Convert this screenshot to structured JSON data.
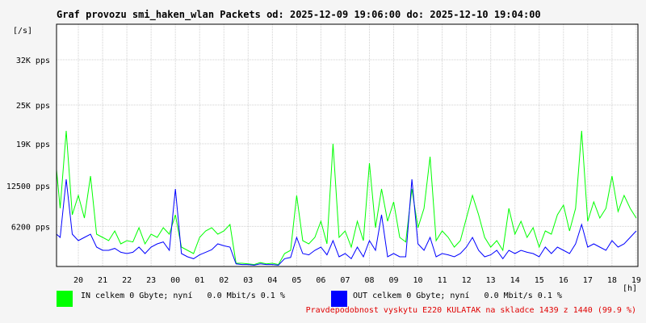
{
  "title": "Graf provozu smi_haken_wlan Packets od: 2025-12-09 19:06:00 do: 2025-12-10 19:04:00",
  "chart_data": {
    "type": "line",
    "ylabel": "[/s]",
    "xlabel": "[h]",
    "y_ticks": [
      {
        "value": 6200,
        "label": "6200 pps"
      },
      {
        "value": 12500,
        "label": "12500 pps"
      },
      {
        "value": 19000,
        "label": "19K pps"
      },
      {
        "value": 25000,
        "label": "25K pps"
      },
      {
        "value": 32000,
        "label": "32K pps"
      }
    ],
    "ylim": [
      0,
      37500
    ],
    "x_ticks": [
      "20",
      "21",
      "22",
      "23",
      "00",
      "01",
      "02",
      "03",
      "04",
      "05",
      "06",
      "07",
      "08",
      "09",
      "10",
      "11",
      "12",
      "13",
      "14",
      "15",
      "16",
      "17",
      "18",
      "19"
    ],
    "xlim": [
      19.1,
      43.07
    ],
    "grid": true,
    "series": [
      {
        "name": "IN",
        "color": "#00ff00",
        "x": [
          19.1,
          19.25,
          19.5,
          19.75,
          20.0,
          20.25,
          20.5,
          20.75,
          21.0,
          21.25,
          21.5,
          21.75,
          22.0,
          22.25,
          22.5,
          22.75,
          23.0,
          23.25,
          23.5,
          23.75,
          24.0,
          24.25,
          24.5,
          24.75,
          25.0,
          25.25,
          25.5,
          25.75,
          26.0,
          26.25,
          26.5,
          26.75,
          27.0,
          27.25,
          27.5,
          27.75,
          28.0,
          28.25,
          28.5,
          28.75,
          29.0,
          29.25,
          29.5,
          29.75,
          30.0,
          30.25,
          30.5,
          30.75,
          31.0,
          31.25,
          31.5,
          31.75,
          32.0,
          32.25,
          32.5,
          32.75,
          33.0,
          33.25,
          33.5,
          33.75,
          34.0,
          34.25,
          34.5,
          34.75,
          35.0,
          35.25,
          35.5,
          35.75,
          36.0,
          36.25,
          36.5,
          36.75,
          37.0,
          37.25,
          37.5,
          37.75,
          38.0,
          38.25,
          38.5,
          38.75,
          39.0,
          39.25,
          39.5,
          39.75,
          40.0,
          40.25,
          40.5,
          40.75,
          41.0,
          41.25,
          41.5,
          41.75,
          42.0,
          42.25,
          42.5,
          42.75,
          43.0
        ],
        "values": [
          15000,
          9000,
          21000,
          8000,
          11000,
          7500,
          14000,
          5000,
          4500,
          4000,
          5500,
          3500,
          4000,
          3800,
          6000,
          3500,
          5000,
          4500,
          6000,
          5000,
          8000,
          3000,
          2500,
          2000,
          4500,
          5500,
          6000,
          5000,
          5500,
          6500,
          500,
          500,
          400,
          300,
          600,
          400,
          500,
          300,
          2000,
          2500,
          11000,
          4000,
          3500,
          4500,
          7000,
          3500,
          19000,
          4500,
          5500,
          3000,
          7000,
          4000,
          16000,
          6000,
          12000,
          7000,
          10000,
          4500,
          3800,
          12000,
          6000,
          9000,
          17000,
          4000,
          5500,
          4500,
          3000,
          4000,
          7500,
          11000,
          8000,
          4500,
          3000,
          4000,
          2500,
          9000,
          5000,
          7000,
          4500,
          6000,
          3000,
          5500,
          5000,
          8000,
          9500,
          5500,
          9000,
          21000,
          7000,
          10000,
          7500,
          9000,
          14000,
          8500,
          11000,
          9000,
          7500
        ]
      },
      {
        "name": "OUT",
        "color": "#0000ff",
        "x": [
          19.1,
          19.25,
          19.5,
          19.75,
          20.0,
          20.25,
          20.5,
          20.75,
          21.0,
          21.25,
          21.5,
          21.75,
          22.0,
          22.25,
          22.5,
          22.75,
          23.0,
          23.25,
          23.5,
          23.75,
          24.0,
          24.25,
          24.5,
          24.75,
          25.0,
          25.25,
          25.5,
          25.75,
          26.0,
          26.25,
          26.5,
          26.75,
          27.0,
          27.25,
          27.5,
          27.75,
          28.0,
          28.25,
          28.5,
          28.75,
          29.0,
          29.25,
          29.5,
          29.75,
          30.0,
          30.25,
          30.5,
          30.75,
          31.0,
          31.25,
          31.5,
          31.75,
          32.0,
          32.25,
          32.5,
          32.75,
          33.0,
          33.25,
          33.5,
          33.75,
          34.0,
          34.25,
          34.5,
          34.75,
          35.0,
          35.25,
          35.5,
          35.75,
          36.0,
          36.25,
          36.5,
          36.75,
          37.0,
          37.25,
          37.5,
          37.75,
          38.0,
          38.25,
          38.5,
          38.75,
          39.0,
          39.25,
          39.5,
          39.75,
          40.0,
          40.25,
          40.5,
          40.75,
          41.0,
          41.25,
          41.5,
          41.75,
          42.0,
          42.25,
          42.5,
          42.75,
          43.0
        ],
        "values": [
          5000,
          4500,
          13500,
          5000,
          4000,
          4500,
          5000,
          3000,
          2500,
          2500,
          2800,
          2200,
          2000,
          2200,
          3000,
          2000,
          3000,
          3500,
          3800,
          2500,
          12000,
          2000,
          1500,
          1200,
          1800,
          2200,
          2600,
          3500,
          3200,
          3000,
          400,
          300,
          300,
          200,
          400,
          300,
          300,
          200,
          1200,
          1400,
          4500,
          2000,
          1800,
          2500,
          3000,
          1800,
          4000,
          1500,
          2000,
          1200,
          3000,
          1500,
          4000,
          2500,
          8000,
          1500,
          2000,
          1500,
          1500,
          13500,
          3500,
          2500,
          4500,
          1500,
          2000,
          1800,
          1500,
          2000,
          3000,
          4500,
          2500,
          1500,
          1800,
          2500,
          1200,
          2500,
          2000,
          2500,
          2200,
          2000,
          1500,
          3000,
          2000,
          3000,
          2500,
          2000,
          3500,
          6500,
          3000,
          3500,
          3000,
          2500,
          4000,
          3000,
          3500,
          4500,
          5500
        ]
      }
    ]
  },
  "legend": [
    {
      "text": "IN celkem 0 Gbyte; nyní   0.0 Mbit/s 0.1 %",
      "color": "#00ff00"
    },
    {
      "text": "OUT celkem 0 Gbyte; nyní   0.0 Mbit/s 0.1 %",
      "color": "#0000ff"
    }
  ],
  "probability_text": "Pravdepodobnost vyskytu E220 KULATAK na skladce 1439 z 1440 (99.9 %)"
}
